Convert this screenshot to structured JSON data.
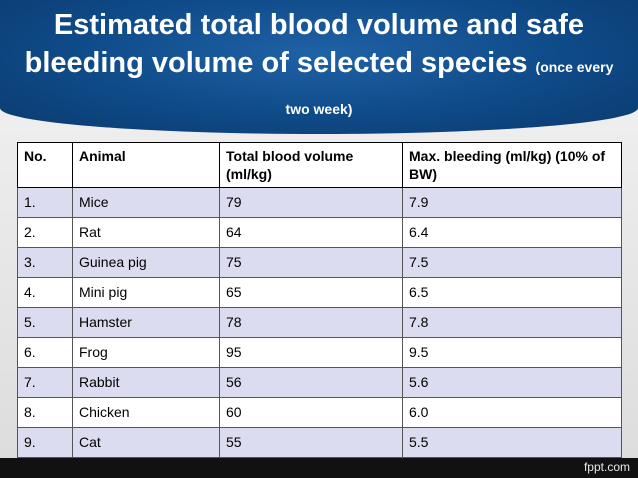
{
  "slide": {
    "title_main": "Estimated total blood volume and safe bleeding volume of selected species",
    "title_sub": "(once every two week)",
    "brand": "fppt.com"
  },
  "table": {
    "headers": [
      "No.",
      "Animal",
      "Total blood volume (ml/kg)",
      "Max. bleeding (ml/kg) (10% of BW)"
    ],
    "rows": [
      [
        "1.",
        "Mice",
        "79",
        "7.9"
      ],
      [
        "2.",
        "Rat",
        "64",
        "6.4"
      ],
      [
        "3.",
        "Guinea pig",
        "75",
        "7.5"
      ],
      [
        "4.",
        "Mini pig",
        "65",
        "6.5"
      ],
      [
        "5.",
        "Hamster",
        "78",
        "7.8"
      ],
      [
        "6.",
        "Frog",
        "95",
        "9.5"
      ],
      [
        "7.",
        "Rabbit",
        "56",
        "5.6"
      ],
      [
        "8.",
        "Chicken",
        "60",
        "6.0"
      ],
      [
        "9.",
        "Cat",
        "55",
        "5.5"
      ]
    ]
  }
}
